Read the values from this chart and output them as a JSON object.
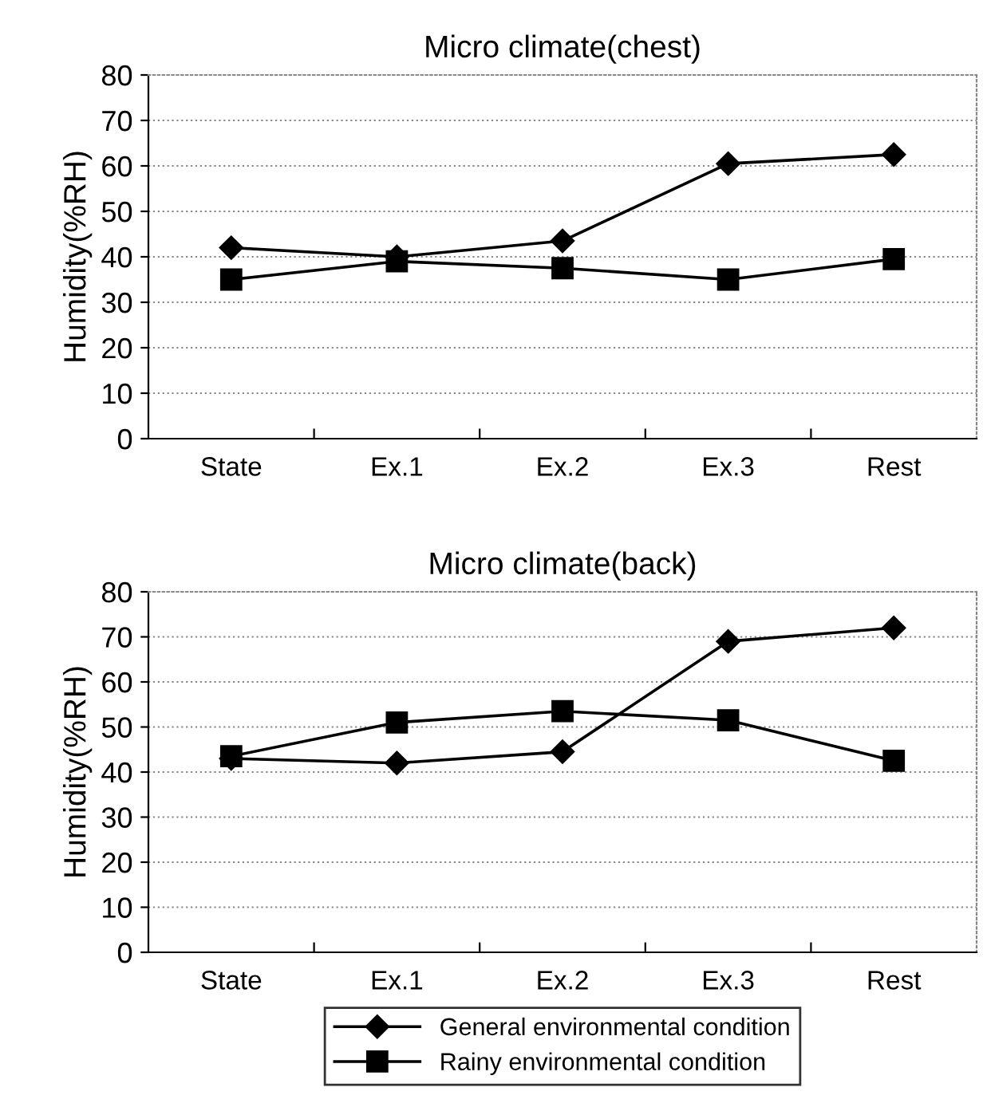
{
  "chart_data": [
    {
      "type": "line",
      "title": "Micro climate(chest)",
      "ylabel": "Humidity(%RH)",
      "categories": [
        "State",
        "Ex.1",
        "Ex.2",
        "Ex.3",
        "Rest"
      ],
      "series": [
        {
          "color": "#000000",
          "marker": "diamond",
          "values": [
            42,
            40,
            43.5,
            60.5,
            62.5
          ]
        },
        {
          "color": "#000000",
          "marker": "square",
          "values": [
            35,
            39,
            37.5,
            35,
            39.5
          ]
        }
      ],
      "ylim": [
        0,
        80
      ],
      "yticks": [
        0,
        10,
        20,
        30,
        40,
        50,
        60,
        70,
        80
      ],
      "grid": "y",
      "legend": false,
      "line_style": "solid"
    },
    {
      "type": "line",
      "title": "Micro climate(back)",
      "ylabel": "Humidity(%RH)",
      "categories": [
        "State",
        "Ex.1",
        "Ex.2",
        "Ex.3",
        "Rest"
      ],
      "series": [
        {
          "name": "General environmental condition",
          "color": "#000000",
          "marker": "diamond",
          "values": [
            43,
            42,
            44.5,
            69,
            72
          ]
        },
        {
          "name": "Rainy environmental condition",
          "color": "#000000",
          "marker": "square",
          "values": [
            43.5,
            51,
            53.5,
            51.5,
            42.5
          ]
        }
      ],
      "ylim": [
        0,
        80
      ],
      "yticks": [
        0,
        10,
        20,
        30,
        40,
        50,
        60,
        70,
        80
      ],
      "grid": "y",
      "legend": "bottom",
      "line_style": "solid"
    }
  ]
}
